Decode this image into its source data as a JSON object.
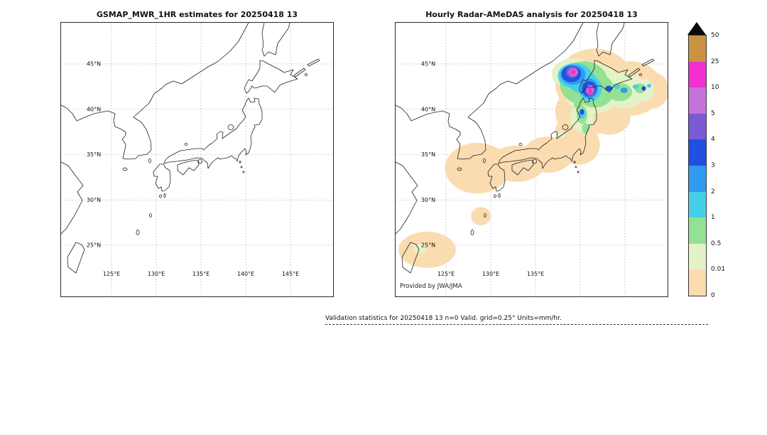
{
  "figure": {
    "left_panel": {
      "title": "GSMAP_MWR_1HR estimates for 20250418 13",
      "lat_ticks": [
        "45°N",
        "40°N",
        "35°N",
        "30°N",
        "25°N"
      ],
      "lon_ticks": [
        "125°E",
        "130°E",
        "135°E",
        "140°E",
        "145°E"
      ]
    },
    "right_panel": {
      "title": "Hourly Radar-AMeDAS analysis for 20250418 13",
      "lat_ticks": [
        "45°N",
        "40°N",
        "35°N",
        "30°N",
        "25°N"
      ],
      "lon_ticks": [
        "125°E",
        "130°E",
        "135°E"
      ],
      "credit": "Provided by JWA/JMA"
    },
    "colorbar": {
      "arrow_color": "#0a0a0a",
      "bottom_label": "0",
      "segments": [
        {
          "color": "#c99440",
          "label": "50"
        },
        {
          "color": "#f32fd0",
          "label": "25"
        },
        {
          "color": "#c473d9",
          "label": "10"
        },
        {
          "color": "#7b5ad5",
          "label": "5"
        },
        {
          "color": "#2050e0",
          "label": "4"
        },
        {
          "color": "#2f9bf0",
          "label": "3"
        },
        {
          "color": "#45d0e8",
          "label": "2"
        },
        {
          "color": "#93e193",
          "label": "1"
        },
        {
          "color": "#e4f2c8",
          "label": "0.5"
        },
        {
          "color": "#fadcb0",
          "label": "0.01"
        }
      ]
    },
    "footer": {
      "text": "Validation statistics for 20250418 13  n=0 Valid. grid=0.25° Units=mm/hr."
    }
  },
  "chart_data": {
    "type": "heatmap",
    "units": "mm/hr",
    "grid_resolution_deg": 0.25,
    "lon_range": [
      119.4,
      149.8
    ],
    "lat_range": [
      19.3,
      49.6
    ],
    "lat_gridlines": [
      45,
      40,
      35,
      30,
      25
    ],
    "lon_gridlines": [
      125,
      130,
      135,
      140,
      145
    ],
    "colorbar_levels": [
      0,
      0.01,
      0.5,
      1,
      2,
      3,
      4,
      5,
      10,
      25,
      50
    ],
    "level_colors": {
      "0": "#fadcb0",
      "0.01": "#e4f2c8",
      "0.5": "#93e193",
      "1": "#45d0e8",
      "2": "#2f9bf0",
      "3": "#2050e0",
      "4": "#7b5ad5",
      "5": "#c473d9",
      "10": "#f32fd0",
      "25": "#c99440"
    },
    "panels": [
      {
        "name": "GSMAP_MWR_1HR",
        "datetime": "20250418 13",
        "has_precip": false
      },
      {
        "name": "Radar-AMeDAS",
        "datetime": "20250418 13",
        "has_precip": true
      }
    ],
    "precip_cells": [
      {
        "lon": 122.9,
        "lat": 24.5,
        "rlon": 3.2,
        "rlat": 2.0,
        "level": 0
      },
      {
        "lon": 128.9,
        "lat": 28.2,
        "rlon": 1.1,
        "rlat": 1.0,
        "level": 0
      },
      {
        "lon": 128.5,
        "lat": 33.5,
        "rlon": 3.6,
        "rlat": 2.8,
        "level": 0
      },
      {
        "lon": 132.9,
        "lat": 34.0,
        "rlon": 3.2,
        "rlat": 2.0,
        "level": 0
      },
      {
        "lon": 136.4,
        "lat": 35.0,
        "rlon": 2.8,
        "rlat": 2.0,
        "level": 0
      },
      {
        "lon": 139.8,
        "lat": 36.1,
        "rlon": 2.4,
        "rlat": 2.2,
        "level": 0
      },
      {
        "lon": 139.0,
        "lat": 37.6,
        "rlon": 1.8,
        "rlat": 1.6,
        "level": 0
      },
      {
        "lon": 140.4,
        "lat": 39.7,
        "rlon": 3.2,
        "rlat": 2.8,
        "level": 0
      },
      {
        "lon": 141.6,
        "lat": 42.9,
        "rlon": 4.4,
        "rlat": 3.8,
        "level": 0
      },
      {
        "lon": 145.6,
        "lat": 42.3,
        "rlon": 3.6,
        "rlat": 3.0,
        "level": 0
      },
      {
        "lon": 148.1,
        "lat": 42.1,
        "rlon": 1.8,
        "rlat": 2.0,
        "level": 0
      },
      {
        "lon": 143.2,
        "lat": 39.0,
        "rlon": 2.4,
        "rlat": 1.8,
        "level": 0
      },
      {
        "lon": 141.4,
        "lat": 42.3,
        "rlon": 3.3,
        "rlat": 2.8,
        "level": 0.01
      },
      {
        "lon": 139.2,
        "lat": 43.9,
        "rlon": 2.4,
        "rlat": 1.7,
        "level": 0.01
      },
      {
        "lon": 144.8,
        "lat": 42.1,
        "rlon": 2.5,
        "rlat": 2.0,
        "level": 0.01
      },
      {
        "lon": 147.1,
        "lat": 42.1,
        "rlon": 1.2,
        "rlat": 1.2,
        "level": 0.01
      },
      {
        "lon": 140.2,
        "lat": 39.1,
        "rlon": 1.3,
        "rlat": 1.6,
        "level": 0.01
      },
      {
        "lon": 122.1,
        "lat": 24.6,
        "rlon": 0.7,
        "rlat": 0.5,
        "level": 0.01
      },
      {
        "lon": 137.8,
        "lat": 37.2,
        "rlon": 0.5,
        "rlat": 0.4,
        "level": 0.01
      },
      {
        "lon": 140.4,
        "lat": 42.9,
        "rlon": 2.7,
        "rlat": 2.4,
        "level": 0.5
      },
      {
        "lon": 141.6,
        "lat": 42.1,
        "rlon": 2.2,
        "rlat": 1.9,
        "level": 0.5
      },
      {
        "lon": 139.6,
        "lat": 43.7,
        "rlon": 2.1,
        "rlat": 1.4,
        "level": 0.5
      },
      {
        "lon": 144.4,
        "lat": 41.9,
        "rlon": 1.4,
        "rlat": 1.0,
        "level": 0.5
      },
      {
        "lon": 146.7,
        "lat": 42.3,
        "rlon": 0.6,
        "rlat": 0.55,
        "level": 0.5
      },
      {
        "lon": 140.2,
        "lat": 39.4,
        "rlon": 0.6,
        "rlat": 1.0,
        "level": 0.5
      },
      {
        "lon": 140.6,
        "lat": 37.9,
        "rlon": 0.4,
        "rlat": 0.6,
        "level": 0.5
      },
      {
        "lon": 139.8,
        "lat": 40.5,
        "rlon": 0.5,
        "rlat": 0.5,
        "level": 0.5
      },
      {
        "lon": 139.4,
        "lat": 43.7,
        "rlon": 1.9,
        "rlat": 1.4,
        "level": 1
      },
      {
        "lon": 141.1,
        "lat": 42.3,
        "rlon": 1.3,
        "rlat": 1.4,
        "level": 1
      },
      {
        "lon": 140.2,
        "lat": 43.1,
        "rlon": 1.6,
        "rlat": 1.3,
        "level": 1
      },
      {
        "lon": 144.1,
        "lat": 42.5,
        "rlon": 0.35,
        "rlat": 0.25,
        "level": 1
      },
      {
        "lon": 146.2,
        "lat": 42.5,
        "rlon": 0.35,
        "rlat": 0.25,
        "level": 1
      },
      {
        "lon": 147.7,
        "lat": 42.6,
        "rlon": 0.25,
        "rlat": 0.2,
        "level": 1
      },
      {
        "lon": 140.2,
        "lat": 39.5,
        "rlon": 0.4,
        "rlat": 0.55,
        "level": 1
      },
      {
        "lon": 139.2,
        "lat": 43.8,
        "rlon": 1.4,
        "rlat": 1.1,
        "level": 2
      },
      {
        "lon": 141.0,
        "lat": 42.3,
        "rlon": 1.0,
        "rlat": 1.1,
        "level": 2
      },
      {
        "lon": 144.9,
        "lat": 42.1,
        "rlon": 0.4,
        "rlat": 0.3,
        "level": 2
      },
      {
        "lon": 139.0,
        "lat": 43.9,
        "rlon": 1.1,
        "rlat": 0.9,
        "level": 3
      },
      {
        "lon": 141.0,
        "lat": 42.25,
        "rlon": 0.8,
        "rlat": 0.85,
        "level": 3
      },
      {
        "lon": 143.2,
        "lat": 42.3,
        "rlon": 0.4,
        "rlat": 0.3,
        "level": 3
      },
      {
        "lon": 147.1,
        "lat": 42.3,
        "rlon": 0.25,
        "rlat": 0.25,
        "level": 3
      },
      {
        "lon": 140.2,
        "lat": 39.7,
        "rlon": 0.25,
        "rlat": 0.3,
        "level": 3
      },
      {
        "lon": 139.1,
        "lat": 44.1,
        "rlon": 0.7,
        "rlat": 0.65,
        "level": 4
      },
      {
        "lon": 141.1,
        "lat": 42.1,
        "rlon": 0.55,
        "rlat": 0.65,
        "level": 4
      },
      {
        "lon": 139.2,
        "lat": 44.1,
        "rlon": 0.5,
        "rlat": 0.45,
        "level": 5
      },
      {
        "lon": 141.1,
        "lat": 42.1,
        "rlon": 0.4,
        "rlat": 0.45,
        "level": 5
      },
      {
        "lon": 139.2,
        "lat": 44.1,
        "rlon": 0.32,
        "rlat": 0.28,
        "level": 10
      },
      {
        "lon": 141.1,
        "lat": 42.0,
        "rlon": 0.25,
        "rlat": 0.28,
        "level": 10
      }
    ]
  }
}
